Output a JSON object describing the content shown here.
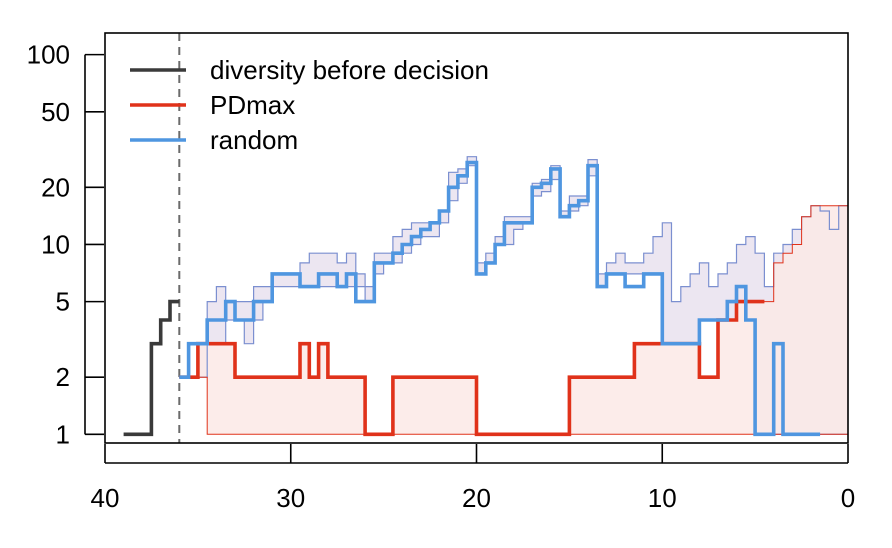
{
  "chart_data": {
    "type": "line",
    "title": "",
    "xlabel": "",
    "ylabel": "",
    "xlim": [
      40,
      0
    ],
    "x_reversed": true,
    "ylim": [
      0.9,
      130
    ],
    "y_scale": "log",
    "grid": false,
    "legend_placement": "top-left",
    "x_ticks": [
      40,
      30,
      20,
      10,
      0
    ],
    "x_tick_labels": [
      "40",
      "30",
      "20",
      "10",
      "0"
    ],
    "y_ticks": [
      1,
      2,
      5,
      10,
      20,
      50,
      100
    ],
    "y_tick_labels": [
      "1",
      "2",
      "5",
      "10",
      "20",
      "50",
      "100"
    ],
    "decision_time": 36,
    "colors": {
      "diversity_before_decision": "#3a3a3a",
      "PDmax": "#e0321a",
      "random": "#4f96e0",
      "pdmax_band": "#fce9e6",
      "random_band": "#ece6f1",
      "band_edge_blue": "#7b8fd0",
      "decision_line": "#6b6b6b"
    },
    "series": [
      {
        "name": "diversity before decision",
        "step": [
          [
            39,
            1
          ],
          [
            37.5,
            3
          ],
          [
            37,
            4
          ],
          [
            36.5,
            5
          ],
          [
            36,
            5
          ]
        ]
      },
      {
        "name": "PDmax",
        "step": [
          [
            36,
            2
          ],
          [
            35,
            3
          ],
          [
            33,
            2
          ],
          [
            29.5,
            3
          ],
          [
            29,
            2
          ],
          [
            28.5,
            3
          ],
          [
            28,
            2
          ],
          [
            26,
            1
          ],
          [
            24.5,
            2
          ],
          [
            20,
            1
          ],
          [
            15,
            2
          ],
          [
            11.5,
            3
          ],
          [
            8,
            2
          ],
          [
            7,
            4
          ],
          [
            6,
            5
          ],
          [
            4.5,
            5
          ]
        ]
      },
      {
        "name": "random",
        "step": [
          [
            36,
            2
          ],
          [
            35.5,
            3
          ],
          [
            34.5,
            4
          ],
          [
            33.5,
            5
          ],
          [
            33,
            4
          ],
          [
            32,
            5
          ],
          [
            31,
            7
          ],
          [
            29.5,
            6
          ],
          [
            28.5,
            7
          ],
          [
            27.5,
            6
          ],
          [
            27,
            7
          ],
          [
            26.5,
            5
          ],
          [
            25.5,
            8
          ],
          [
            24.5,
            9
          ],
          [
            24,
            10
          ],
          [
            23.5,
            11
          ],
          [
            23,
            12
          ],
          [
            22.5,
            13
          ],
          [
            22,
            15
          ],
          [
            21.5,
            20
          ],
          [
            21,
            23
          ],
          [
            20.5,
            27
          ],
          [
            20,
            7
          ],
          [
            19.5,
            8
          ],
          [
            19,
            10
          ],
          [
            18.5,
            13
          ],
          [
            17.5,
            13
          ],
          [
            17,
            20
          ],
          [
            16.5,
            21
          ],
          [
            16,
            25
          ],
          [
            15.5,
            14
          ],
          [
            15,
            16
          ],
          [
            14.5,
            17
          ],
          [
            14,
            26
          ],
          [
            13.5,
            6
          ],
          [
            13,
            7
          ],
          [
            12,
            6
          ],
          [
            11,
            7
          ],
          [
            10,
            3
          ],
          [
            8,
            4
          ],
          [
            6.5,
            5
          ],
          [
            6,
            6
          ],
          [
            5.5,
            4
          ],
          [
            5,
            1
          ],
          [
            4,
            3
          ],
          [
            3.5,
            1
          ],
          [
            1.5,
            1
          ]
        ]
      }
    ],
    "pdmax_band": {
      "lower_step": [
        [
          36,
          2
        ],
        [
          34.5,
          1
        ],
        [
          0,
          1
        ]
      ],
      "upper_step": [
        [
          36,
          2
        ],
        [
          35,
          3
        ],
        [
          33,
          2
        ],
        [
          29.5,
          3
        ],
        [
          29,
          2
        ],
        [
          28.5,
          3
        ],
        [
          28,
          2
        ],
        [
          26,
          1
        ],
        [
          24.5,
          2
        ],
        [
          20,
          1
        ],
        [
          15,
          2
        ],
        [
          11.5,
          3
        ],
        [
          8,
          2
        ],
        [
          7,
          4
        ],
        [
          6,
          5
        ],
        [
          4.5,
          5
        ],
        [
          4,
          8
        ],
        [
          3.5,
          9
        ],
        [
          3,
          10
        ],
        [
          2.5,
          14
        ],
        [
          2,
          16
        ],
        [
          1,
          16
        ],
        [
          0,
          16
        ]
      ]
    },
    "random_band": {
      "lower_step": [
        [
          36,
          2
        ],
        [
          34.5,
          3
        ],
        [
          33.5,
          4
        ],
        [
          32.5,
          3
        ],
        [
          32,
          4
        ],
        [
          31.5,
          5
        ],
        [
          31,
          6
        ],
        [
          30.5,
          6
        ],
        [
          29,
          6
        ],
        [
          28,
          6
        ],
        [
          27,
          6
        ],
        [
          26,
          5
        ],
        [
          25.5,
          7
        ],
        [
          25,
          8
        ],
        [
          24,
          9
        ],
        [
          23.5,
          10
        ],
        [
          23,
          11
        ],
        [
          22,
          13
        ],
        [
          21.5,
          17
        ],
        [
          21,
          21
        ],
        [
          20.5,
          26
        ],
        [
          20,
          7
        ],
        [
          19.5,
          8
        ],
        [
          19,
          10
        ],
        [
          18,
          12
        ],
        [
          17.5,
          13
        ],
        [
          17,
          18
        ],
        [
          16.5,
          19
        ],
        [
          16,
          22
        ],
        [
          15.5,
          14
        ],
        [
          15,
          15
        ],
        [
          14.5,
          16
        ],
        [
          14,
          23
        ],
        [
          13.5,
          6
        ],
        [
          13,
          7
        ],
        [
          11,
          7
        ],
        [
          10,
          3
        ],
        [
          9,
          3
        ],
        [
          8,
          4
        ],
        [
          7,
          4
        ],
        [
          6,
          5
        ],
        [
          5.5,
          4
        ],
        [
          5,
          1
        ],
        [
          0,
          1
        ]
      ],
      "upper_step": [
        [
          36,
          2
        ],
        [
          35,
          3
        ],
        [
          34.5,
          5
        ],
        [
          34,
          6
        ],
        [
          33.5,
          5
        ],
        [
          32.5,
          5
        ],
        [
          32,
          6
        ],
        [
          31,
          7
        ],
        [
          30.5,
          7
        ],
        [
          29.5,
          8
        ],
        [
          29,
          9
        ],
        [
          27.5,
          8
        ],
        [
          27,
          9
        ],
        [
          26.5,
          7
        ],
        [
          26,
          6
        ],
        [
          25.5,
          9
        ],
        [
          25,
          9
        ],
        [
          24.5,
          11
        ],
        [
          24,
          12
        ],
        [
          23.5,
          13
        ],
        [
          23,
          13
        ],
        [
          22,
          15
        ],
        [
          21.5,
          24
        ],
        [
          21,
          25
        ],
        [
          20.5,
          29
        ],
        [
          20,
          8
        ],
        [
          19.5,
          9
        ],
        [
          19,
          11
        ],
        [
          18.5,
          14
        ],
        [
          17.5,
          14
        ],
        [
          17,
          21
        ],
        [
          16.5,
          22
        ],
        [
          16,
          26
        ],
        [
          15.5,
          15
        ],
        [
          15,
          18
        ],
        [
          14.5,
          18
        ],
        [
          14,
          28
        ],
        [
          13.5,
          7
        ],
        [
          13,
          8
        ],
        [
          12.5,
          9
        ],
        [
          12,
          8
        ],
        [
          11,
          9
        ],
        [
          10.5,
          11
        ],
        [
          10,
          13
        ],
        [
          9.5,
          5
        ],
        [
          9,
          6
        ],
        [
          8.5,
          7
        ],
        [
          8,
          8
        ],
        [
          7.5,
          6
        ],
        [
          7,
          7
        ],
        [
          6.5,
          8
        ],
        [
          6,
          10
        ],
        [
          5.5,
          11
        ],
        [
          5,
          9
        ],
        [
          4.5,
          6
        ],
        [
          4,
          9
        ],
        [
          3.5,
          10
        ],
        [
          3,
          12
        ],
        [
          2.5,
          14
        ],
        [
          2,
          16
        ],
        [
          1.5,
          15
        ],
        [
          1,
          12
        ],
        [
          0.5,
          16
        ],
        [
          0,
          16
        ]
      ]
    }
  }
}
